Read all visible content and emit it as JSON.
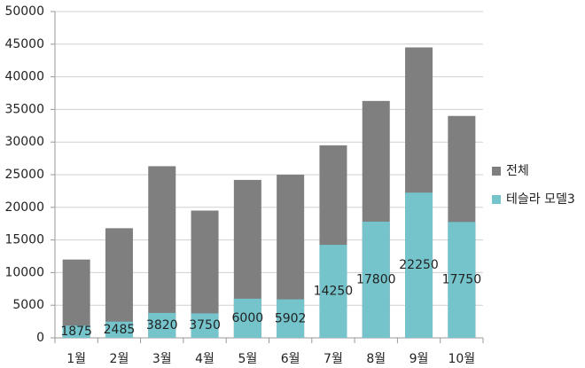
{
  "chart_data": {
    "type": "bar",
    "categories": [
      "1월",
      "2월",
      "3월",
      "4월",
      "5월",
      "6월",
      "7월",
      "8월",
      "9월",
      "10월"
    ],
    "series": [
      {
        "name": "전체",
        "color": "#7f7f7f",
        "values": [
          12000,
          16800,
          26300,
          19500,
          24200,
          25000,
          29500,
          36300,
          44500,
          34000
        ]
      },
      {
        "name": "테슬라 모델3",
        "color": "#75c4cc",
        "values": [
          1875,
          2485,
          3820,
          3750,
          6000,
          5902,
          14250,
          17800,
          22250,
          17750
        ],
        "data_labels": true
      }
    ],
    "ylim": [
      0,
      50000
    ],
    "yticks": [
      0,
      5000,
      10000,
      15000,
      20000,
      25000,
      30000,
      35000,
      40000,
      45000,
      50000
    ],
    "grid": true,
    "legend": "right"
  }
}
